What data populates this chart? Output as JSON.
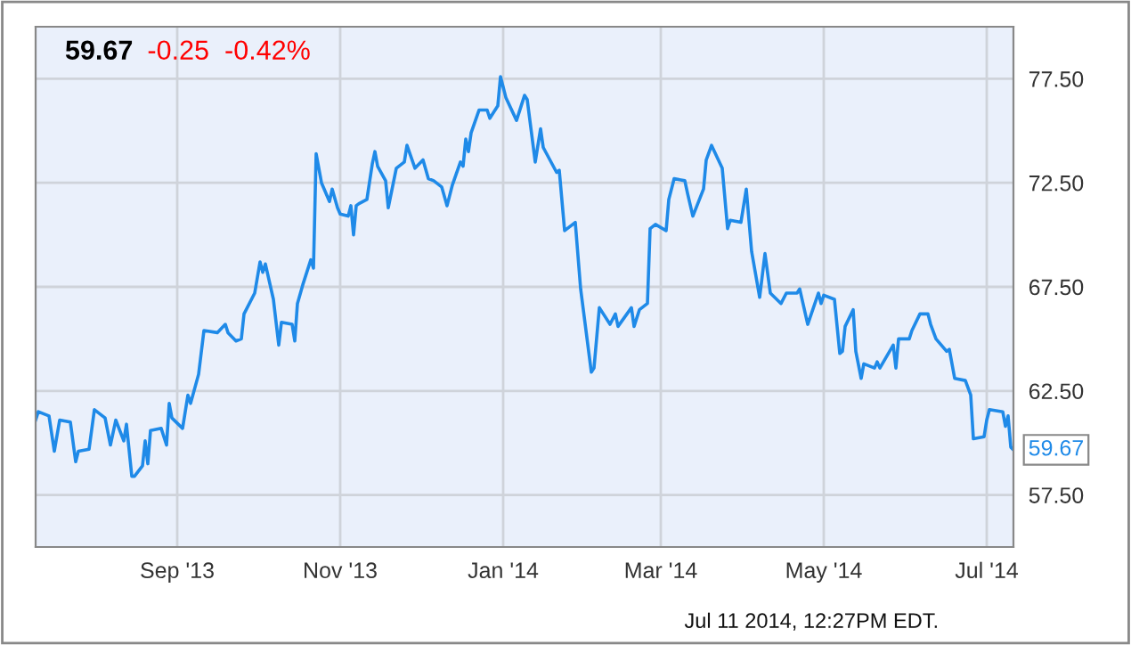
{
  "chart_data": {
    "type": "line",
    "title": "59.67",
    "subtitle": "-0.25  -0.42%",
    "x": [
      "2013-07-10",
      "2013-07-11",
      "2013-07-15",
      "2013-07-17",
      "2013-07-19",
      "2013-07-23",
      "2013-07-25",
      "2013-07-26",
      "2013-07-30",
      "2013-08-01",
      "2013-08-05",
      "2013-08-07",
      "2013-08-09",
      "2013-08-12",
      "2013-08-13",
      "2013-08-15",
      "2013-08-16",
      "2013-08-19",
      "2013-08-20",
      "2013-08-21",
      "2013-08-22",
      "2013-08-26",
      "2013-08-28",
      "2013-08-29",
      "2013-08-30",
      "2013-09-03",
      "2013-09-05",
      "2013-09-06",
      "2013-09-09",
      "2013-09-11",
      "2013-09-16",
      "2013-09-19",
      "2013-09-20",
      "2013-09-23",
      "2013-09-25",
      "2013-09-26",
      "2013-09-30",
      "2013-10-02",
      "2013-10-03",
      "2013-10-04",
      "2013-10-07",
      "2013-10-09",
      "2013-10-10",
      "2013-10-14",
      "2013-10-15",
      "2013-10-16",
      "2013-10-18",
      "2013-10-21",
      "2013-10-22",
      "2013-10-23",
      "2013-10-25",
      "2013-10-28",
      "2013-10-29",
      "2013-10-31",
      "2013-11-01",
      "2013-11-04",
      "2013-11-05",
      "2013-11-06",
      "2013-11-07",
      "2013-11-08",
      "2013-11-11",
      "2013-11-13",
      "2013-11-14",
      "2013-11-15",
      "2013-11-18",
      "2013-11-19",
      "2013-11-22",
      "2013-11-25",
      "2013-11-26",
      "2013-11-29",
      "2013-12-02",
      "2013-12-04",
      "2013-12-06",
      "2013-12-09",
      "2013-12-11",
      "2013-12-13",
      "2013-12-16",
      "2013-12-17",
      "2013-12-18",
      "2013-12-19",
      "2013-12-20",
      "2013-12-23",
      "2013-12-26",
      "2013-12-27",
      "2013-12-30",
      "2013-12-31",
      "2014-01-02",
      "2014-01-06",
      "2014-01-09",
      "2014-01-10",
      "2014-01-13",
      "2014-01-15",
      "2014-01-16",
      "2014-01-21",
      "2014-01-22",
      "2014-01-24",
      "2014-01-28",
      "2014-01-30",
      "2014-02-03",
      "2014-02-04",
      "2014-02-06",
      "2014-02-10",
      "2014-02-12",
      "2014-02-13",
      "2014-02-18",
      "2014-02-19",
      "2014-02-21",
      "2014-02-24",
      "2014-02-25",
      "2014-02-27",
      "2014-03-03",
      "2014-03-04",
      "2014-03-06",
      "2014-03-10",
      "2014-03-11",
      "2014-03-13",
      "2014-03-17",
      "2014-03-18",
      "2014-03-20",
      "2014-03-24",
      "2014-03-26",
      "2014-03-27",
      "2014-03-31",
      "2014-04-02",
      "2014-04-04",
      "2014-04-07",
      "2014-04-09",
      "2014-04-11",
      "2014-04-15",
      "2014-04-17",
      "2014-04-21",
      "2014-04-22",
      "2014-04-25",
      "2014-04-29",
      "2014-04-30",
      "2014-05-01",
      "2014-05-05",
      "2014-05-07",
      "2014-05-08",
      "2014-05-09",
      "2014-05-12",
      "2014-05-13",
      "2014-05-15",
      "2014-05-16",
      "2014-05-20",
      "2014-05-21",
      "2014-05-22",
      "2014-05-27",
      "2014-05-28",
      "2014-05-29",
      "2014-06-02",
      "2014-06-03",
      "2014-06-06",
      "2014-06-09",
      "2014-06-10",
      "2014-06-12",
      "2014-06-16",
      "2014-06-17",
      "2014-06-19",
      "2014-06-23",
      "2014-06-25",
      "2014-06-26",
      "2014-06-30",
      "2014-07-01",
      "2014-07-02",
      "2014-07-07",
      "2014-07-08",
      "2014-07-09",
      "2014-07-10",
      "2014-07-11"
    ],
    "series": [
      {
        "color": "#1f8ae8",
        "values": [
          61.1,
          61.5,
          61.3,
          59.6,
          61.1,
          61.0,
          59.1,
          59.6,
          59.7,
          61.6,
          61.2,
          59.9,
          61.1,
          60.1,
          60.9,
          58.4,
          58.4,
          58.9,
          60.1,
          59.0,
          60.6,
          60.7,
          59.9,
          61.9,
          61.2,
          60.7,
          62.3,
          61.9,
          63.3,
          65.4,
          65.3,
          65.7,
          65.3,
          64.9,
          65.0,
          66.2,
          67.2,
          68.7,
          68.2,
          68.6,
          66.9,
          64.7,
          65.8,
          65.7,
          64.9,
          66.7,
          67.6,
          68.8,
          68.4,
          73.9,
          72.5,
          71.6,
          72.2,
          71.3,
          71.0,
          70.9,
          71.4,
          70.0,
          71.4,
          71.5,
          71.7,
          73.4,
          74.0,
          73.3,
          72.6,
          71.3,
          73.2,
          73.5,
          74.3,
          73.2,
          73.6,
          72.7,
          72.6,
          72.3,
          71.4,
          72.4,
          73.5,
          73.3,
          74.6,
          74.0,
          74.9,
          76.0,
          76.0,
          75.6,
          76.2,
          77.6,
          76.6,
          75.5,
          76.7,
          76.5,
          73.5,
          75.1,
          74.2,
          73.0,
          73.1,
          70.2,
          70.6,
          67.4,
          63.4,
          63.6,
          66.5,
          65.7,
          66.2,
          65.6,
          66.5,
          65.6,
          66.4,
          66.7,
          70.3,
          70.5,
          70.2,
          71.7,
          72.7,
          72.6,
          72.0,
          70.9,
          72.2,
          73.6,
          74.3,
          73.2,
          70.3,
          70.7,
          70.6,
          72.2,
          69.2,
          67.0,
          69.1,
          67.2,
          66.7,
          67.2,
          67.2,
          67.4,
          65.7,
          67.2,
          66.7,
          67.1,
          66.9,
          64.3,
          64.4,
          65.6,
          66.4,
          64.4,
          63.1,
          63.8,
          63.6,
          63.9,
          63.6,
          64.7,
          63.6,
          65.0,
          65.0,
          65.4,
          66.2,
          66.2,
          65.7,
          65.0,
          64.4,
          64.5,
          63.1,
          63.0,
          62.3,
          60.2,
          60.3,
          61.1,
          61.6,
          61.5,
          60.8,
          61.3,
          59.8,
          59.67
        ]
      }
    ],
    "xlim": [
      "2013-07-10",
      "2014-07-11"
    ],
    "xticks": [
      {
        "value": "2013-09-01",
        "label": "Sep '13"
      },
      {
        "value": "2013-11-01",
        "label": "Nov '13"
      },
      {
        "value": "2014-01-01",
        "label": "Jan '14"
      },
      {
        "value": "2014-03-01",
        "label": "Mar '14"
      },
      {
        "value": "2014-05-01",
        "label": "May '14"
      },
      {
        "value": "2014-07-01",
        "label": "Jul '14"
      }
    ],
    "ylim": [
      55,
      80
    ],
    "yticks": [
      {
        "value": 57.5,
        "label": "57.50"
      },
      {
        "value": 62.5,
        "label": "62.50"
      },
      {
        "value": 67.5,
        "label": "67.50"
      },
      {
        "value": 72.5,
        "label": "72.50"
      },
      {
        "value": 77.5,
        "label": "77.50"
      }
    ],
    "grid": true,
    "marker": "none",
    "line_style": "solid",
    "annotations": [
      {
        "text": "59.67",
        "x": "2014-07-11",
        "y": 59.67
      },
      "Jul 11 2014, 12:27PM EDT."
    ]
  }
}
